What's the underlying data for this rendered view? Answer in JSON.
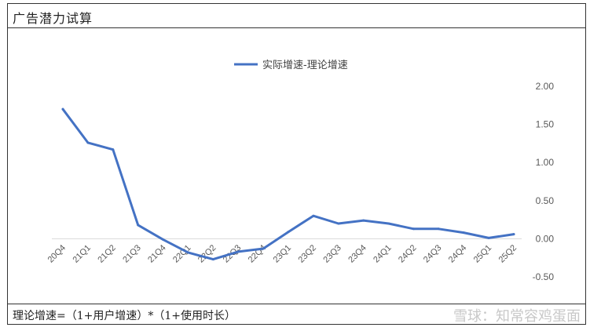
{
  "header": {
    "title": "广告潜力试算"
  },
  "footer": {
    "formula": "理论增速=（1+用户增速）*（1+使用时长）",
    "watermark": "雪球：知常容鸡蛋面"
  },
  "colors": {
    "line": "#4472C4",
    "axis": "#d9d9d9",
    "label": "#595959"
  },
  "chart_data": {
    "type": "line",
    "title": "",
    "xlabel": "",
    "ylabel": "",
    "legend_position": "top-center",
    "categories": [
      "20Q4",
      "21Q1",
      "21Q2",
      "21Q3",
      "21Q4",
      "22Q1",
      "22Q2",
      "22Q3",
      "22Q4",
      "23Q1",
      "23Q2",
      "23Q3",
      "23Q4",
      "24Q1",
      "24Q2",
      "24Q3",
      "24Q4",
      "25Q1",
      "25Q2"
    ],
    "series": [
      {
        "name": "实际增速-理论增速",
        "values": [
          1.7,
          1.26,
          1.17,
          0.18,
          -0.01,
          -0.18,
          -0.27,
          -0.17,
          -0.13,
          0.09,
          0.3,
          0.2,
          0.24,
          0.2,
          0.13,
          0.13,
          0.08,
          0.01,
          0.06
        ]
      }
    ],
    "ylim": [
      -0.5,
      2.0
    ],
    "yticks": [
      "2.00",
      "1.50",
      "1.00",
      "0.50",
      "0.00",
      "-0.50"
    ],
    "ytick_values": [
      2.0,
      1.5,
      1.0,
      0.5,
      0.0,
      -0.5
    ],
    "grid": false
  }
}
